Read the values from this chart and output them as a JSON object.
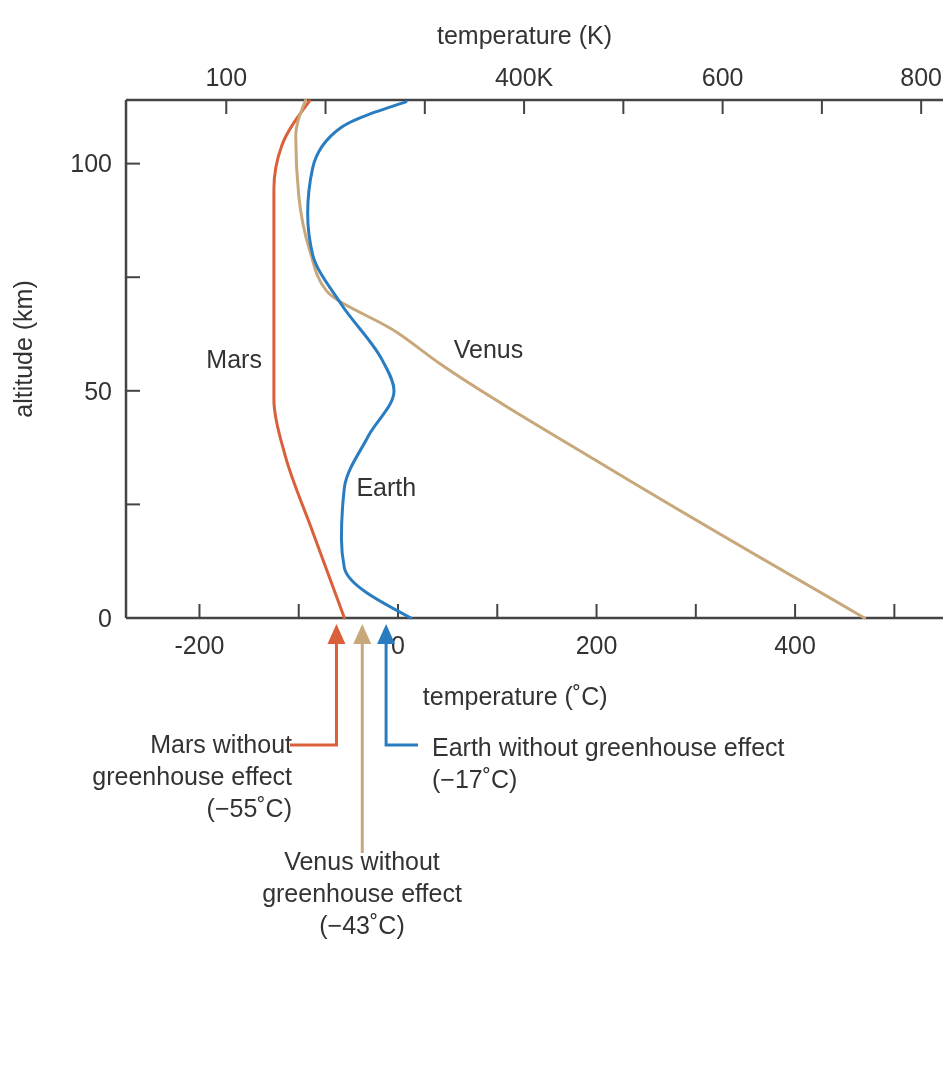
{
  "chart_data": {
    "type": "line",
    "xlabel": "temperature (˚C)",
    "x2label": "temperature (K)",
    "ylabel": "altitude (km)",
    "xlim": [
      -274,
      549
    ],
    "xticks": [
      -200,
      {
        "value": -100,
        "label": null
      },
      0,
      {
        "value": 100,
        "label": null
      },
      200,
      {
        "value": 300,
        "label": null
      },
      400,
      {
        "value": 500,
        "label": null
      }
    ],
    "x2lim": [
      -1,
      822
    ],
    "x2ticks": [
      100,
      {
        "value": 200,
        "label": null
      },
      {
        "value": 300,
        "label": null
      },
      {
        "value": 400,
        "label": "400K"
      },
      {
        "value": 500,
        "label": null
      },
      600,
      {
        "value": 700,
        "label": null
      },
      800
    ],
    "ylim": [
      0,
      114
    ],
    "yticks": [
      0,
      {
        "value": 25,
        "label": null
      },
      50,
      {
        "value": 75,
        "label": null
      },
      100
    ],
    "grid": false,
    "marker": "none",
    "line_style": "solid",
    "series": [
      {
        "name": "Mars",
        "color": "#d9603b",
        "x": [
          -54,
          -86,
          -114,
          -125,
          -125,
          -117,
          -89
        ],
        "values": [
          0,
          19,
          36,
          48,
          94.5,
          104,
          113.8
        ]
      },
      {
        "name": "Venus",
        "color": "#c8a77a",
        "x": [
          470,
          200,
          42,
          -2,
          -72,
          -89,
          -100,
          -103,
          -93
        ],
        "values": [
          0,
          34.6,
          56,
          63,
          72,
          81,
          93,
          106,
          114
        ]
      },
      {
        "name": "Earth",
        "color": "#2a7cc0",
        "x": [
          13,
          -54,
          -57,
          -54,
          -30,
          -4,
          -16,
          -57,
          -86,
          -91,
          -86,
          -57,
          8
        ],
        "values": [
          0,
          11,
          17.5,
          28.7,
          40,
          50,
          56.8,
          69,
          80,
          89,
          99,
          108,
          113.6
        ]
      }
    ],
    "annotations": [
      "Mars without\ngreenhouse effect\n(−55˚C)",
      "Venus without\ngreenhouse effect\n(−43˚C)",
      "Earth without greenhouse effect\n(−17˚C)"
    ]
  }
}
